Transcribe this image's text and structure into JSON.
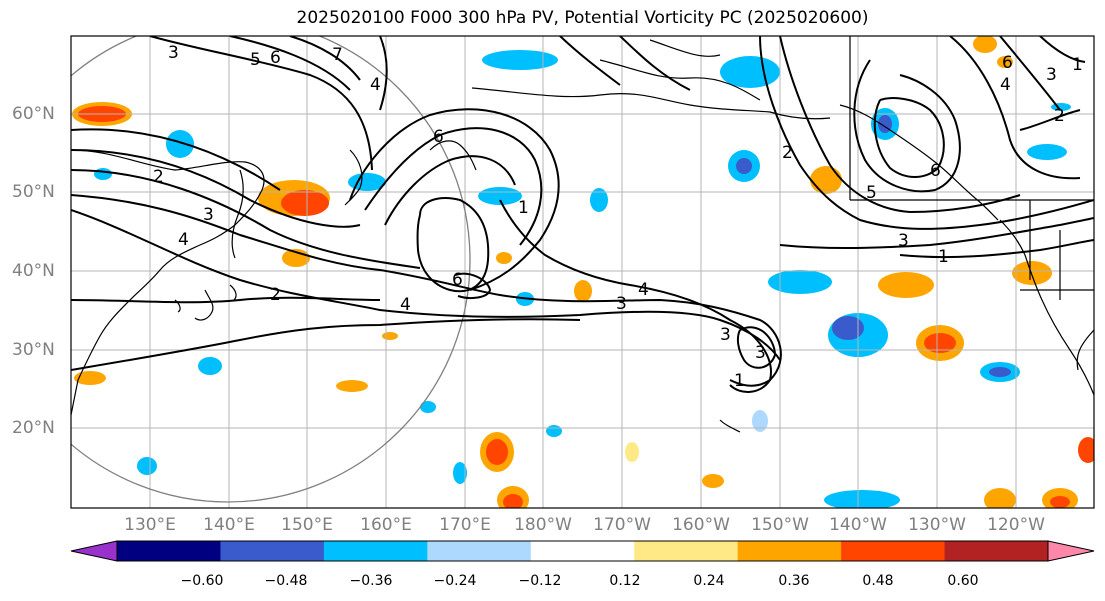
{
  "title": "2025020100 F000 300 hPa PV, Potential Vorticity PC (2025020600)",
  "lat_labels": [
    "60°N",
    "50°N",
    "40°N",
    "30°N",
    "20°N"
  ],
  "lon_labels": [
    "130°E",
    "140°E",
    "150°E",
    "160°E",
    "170°E",
    "180°W",
    "170°W",
    "160°W",
    "150°W",
    "140°W",
    "130°W",
    "120°W"
  ],
  "colorbar": {
    "colors": [
      "#9932CC",
      "#000080",
      "#3A5BCB",
      "#00BFFF",
      "#ADD8FF",
      "#FFFFFF",
      "#FFE986",
      "#FFA500",
      "#FF4500",
      "#B22222",
      "#FF88AA"
    ],
    "tick_labels": [
      "−0.60",
      "−0.48",
      "−0.36",
      "−0.24",
      "−0.12",
      "0.12",
      "0.24",
      "0.36",
      "0.48",
      "0.60"
    ]
  },
  "contour_labels": [
    "3",
    "5",
    "6",
    "7",
    "4",
    "2",
    "3",
    "4",
    "6",
    "2",
    "1",
    "6",
    "4",
    "3",
    "3",
    "4",
    "3",
    "1",
    "5",
    "2",
    "6",
    "3",
    "1",
    "4",
    "3",
    "6",
    "2",
    "1"
  ]
}
